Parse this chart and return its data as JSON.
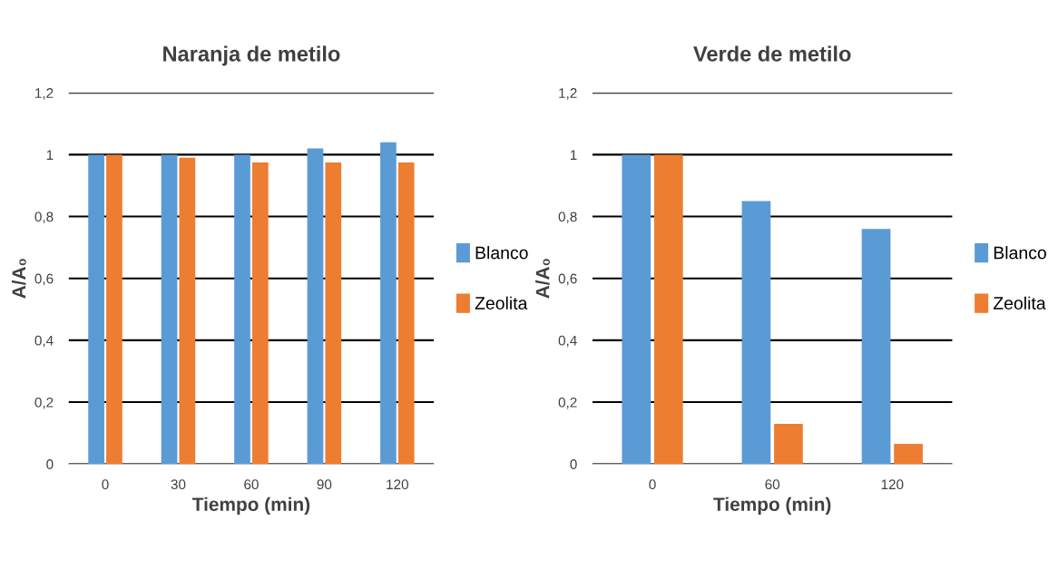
{
  "chart_data": [
    {
      "type": "bar",
      "title": "Naranja de metilo",
      "xlabel": "Tiempo (min)",
      "ylabel": "A/A₀",
      "categories": [
        "0",
        "30",
        "60",
        "90",
        "120"
      ],
      "series": [
        {
          "name": "Blanco",
          "color": "#5b9bd5",
          "values": [
            1,
            1,
            1,
            1.02,
            1.04
          ]
        },
        {
          "name": "Zeolita",
          "color": "#ed7d31",
          "values": [
            1,
            0.99,
            0.975,
            0.975,
            0.975
          ]
        }
      ],
      "ylim": [
        0,
        1.2
      ],
      "yticks": [
        0,
        {
          "value": 0.2,
          "label": "0,2"
        },
        {
          "value": 0.4,
          "label": "0,4"
        },
        {
          "value": 0.6,
          "label": "0,6"
        },
        {
          "value": 0.8,
          "label": "0,8"
        },
        1,
        {
          "value": 1.2,
          "label": "1,2"
        }
      ],
      "grid": "y",
      "legend": "right"
    },
    {
      "type": "bar",
      "title": "Verde de metilo",
      "xlabel": "Tiempo (min)",
      "ylabel": "A/A₀",
      "categories": [
        "0",
        "60",
        "120"
      ],
      "series": [
        {
          "name": "Blanco",
          "color": "#5b9bd5",
          "values": [
            1,
            0.85,
            0.76
          ]
        },
        {
          "name": "Zeolita",
          "color": "#ed7d31",
          "values": [
            1,
            0.13,
            0.065
          ]
        }
      ],
      "ylim": [
        0,
        1.2
      ],
      "yticks": [
        0,
        {
          "value": 0.2,
          "label": "0,2"
        },
        {
          "value": 0.4,
          "label": "0,4"
        },
        {
          "value": 0.6,
          "label": "0,6"
        },
        {
          "value": 0.8,
          "label": "0,8"
        },
        1,
        {
          "value": 1.2,
          "label": "1,2"
        }
      ],
      "grid": "y",
      "legend": "right"
    }
  ]
}
